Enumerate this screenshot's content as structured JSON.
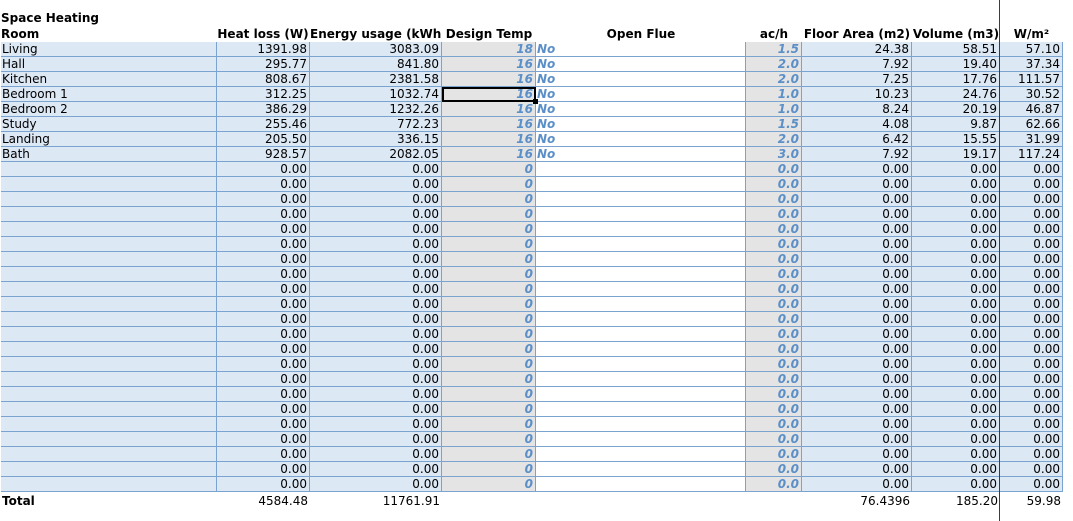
{
  "title": "Space Heating",
  "headers": {
    "room": "Room",
    "heat_loss": "Heat loss (W)",
    "energy": "Energy usage (kWh)",
    "design_temp": "Design Temp",
    "open_flue": "Open Flue",
    "ach": "ac/h",
    "floor_area": "Floor Area (m2)",
    "volume": "Volume (m3)",
    "wm2": "W/m²"
  },
  "rows": [
    {
      "room": "Living",
      "heat_loss": "1391.98",
      "energy": "3083.09",
      "temp": "18",
      "flue": "No",
      "ach": "1.5",
      "area": "24.38",
      "volume": "58.51",
      "wm2": "57.10"
    },
    {
      "room": "Hall",
      "heat_loss": "295.77",
      "energy": "841.80",
      "temp": "16",
      "flue": "No",
      "ach": "2.0",
      "area": "7.92",
      "volume": "19.40",
      "wm2": "37.34"
    },
    {
      "room": "Kitchen",
      "heat_loss": "808.67",
      "energy": "2381.58",
      "temp": "16",
      "flue": "No",
      "ach": "2.0",
      "area": "7.25",
      "volume": "17.76",
      "wm2": "111.57"
    },
    {
      "room": "Bedroom 1",
      "heat_loss": "312.25",
      "energy": "1032.74",
      "temp": "16",
      "flue": "No",
      "ach": "1.0",
      "area": "10.23",
      "volume": "24.76",
      "wm2": "30.52"
    },
    {
      "room": "Bedroom 2",
      "heat_loss": "386.29",
      "energy": "1232.26",
      "temp": "16",
      "flue": "No",
      "ach": "1.0",
      "area": "8.24",
      "volume": "20.19",
      "wm2": "46.87"
    },
    {
      "room": "Study",
      "heat_loss": "255.46",
      "energy": "772.23",
      "temp": "16",
      "flue": "No",
      "ach": "1.5",
      "area": "4.08",
      "volume": "9.87",
      "wm2": "62.66"
    },
    {
      "room": "Landing",
      "heat_loss": "205.50",
      "energy": "336.15",
      "temp": "16",
      "flue": "No",
      "ach": "2.0",
      "area": "6.42",
      "volume": "15.55",
      "wm2": "31.99"
    },
    {
      "room": "Bath",
      "heat_loss": "928.57",
      "energy": "2082.05",
      "temp": "16",
      "flue": "No",
      "ach": "3.0",
      "area": "7.92",
      "volume": "19.17",
      "wm2": "117.24"
    }
  ],
  "empty_rows": {
    "count": 22,
    "heat_loss": "0.00",
    "energy": "0.00",
    "temp": "0",
    "ach": "0.0",
    "area": "0.00",
    "volume": "0.00",
    "wm2": "0.00"
  },
  "totals": {
    "label": "Total",
    "heat_loss": "4584.48",
    "energy": "11761.91",
    "area": "76.4396",
    "volume": "185.20",
    "wm2": "59.98"
  },
  "colors": {
    "input_blue": "#dde8f5",
    "grid_line": "#7aa3cf",
    "grey_column": "#e4e4e4",
    "italic_blue": "#5b8fc8",
    "page_break": "#8b1a1a"
  }
}
